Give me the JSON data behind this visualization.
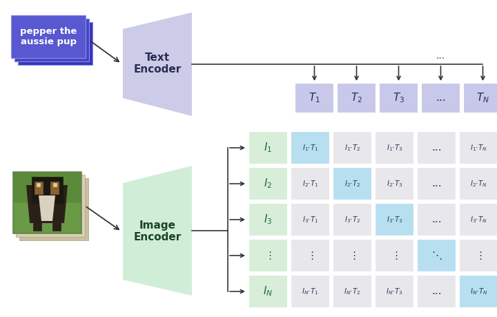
{
  "bg_color": "#ffffff",
  "text_box_colors": [
    "#3535bb",
    "#4545c5",
    "#5858d0"
  ],
  "text_box_label": "pepper the\naussie pup",
  "text_encoder_color": "#cccce8",
  "text_encoder_label": "Text\nEncoder",
  "image_encoder_color": "#d0edd8",
  "image_encoder_label": "Image\nEncoder",
  "T_cell_color": "#c8c8ea",
  "I_cell_color": "#d8eed8",
  "diag_cell_color": "#b8dff0",
  "off_diag_color": "#e8e8ec",
  "arrow_color": "#333333",
  "T_labels": [
    "$T_1$",
    "$T_2$",
    "$T_3$",
    "...",
    "$T_N$"
  ],
  "I_labels": [
    "$I_1$",
    "$I_2$",
    "$I_3$",
    "$\\vdots$",
    "$I_N$"
  ],
  "matrix_labels": [
    [
      "$I_1{\\cdot}T_1$",
      "$I_1{\\cdot}T_2$",
      "$I_1{\\cdot}T_3$",
      "...",
      "$I_1{\\cdot}T_N$"
    ],
    [
      "$I_2{\\cdot}T_1$",
      "$I_2{\\cdot}T_2$",
      "$I_2{\\cdot}T_3$",
      "...",
      "$I_2{\\cdot}T_N$"
    ],
    [
      "$I_3{\\cdot}T_1$",
      "$I_3{\\cdot}T_2$",
      "$I_3{\\cdot}T_3$",
      "...",
      "$I_3{\\cdot}T_N$"
    ],
    [
      "$\\vdots$",
      "$\\vdots$",
      "$\\vdots$",
      "$\\ddots$",
      "$\\vdots$"
    ],
    [
      "$I_N{\\cdot}T_1$",
      "$I_N{\\cdot}T_2$",
      "$I_N{\\cdot}T_3$",
      "...",
      "$I_N{\\cdot}T_N$"
    ]
  ],
  "matrix_diag": [
    [
      0,
      0
    ],
    [
      1,
      1
    ],
    [
      2,
      2
    ],
    [
      3,
      3
    ],
    [
      4,
      4
    ]
  ],
  "figsize": [
    7.2,
    4.59
  ],
  "dpi": 100
}
